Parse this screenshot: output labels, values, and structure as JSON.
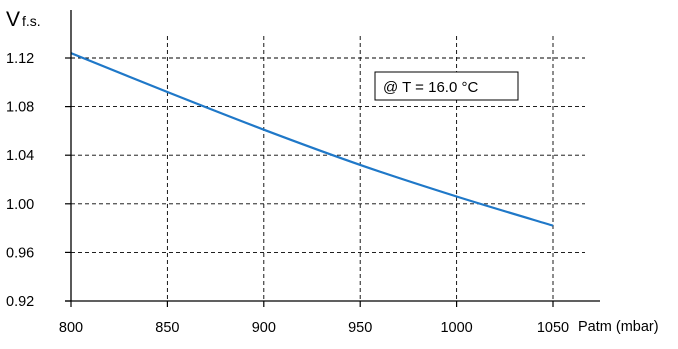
{
  "chart_data": {
    "type": "line",
    "title": "",
    "ylabel_main": "V",
    "ylabel_sub": "f.s.",
    "xlabel": "Patm (mbar)",
    "xlim": [
      800,
      1050
    ],
    "ylim": [
      0.92,
      1.12
    ],
    "x_ticks": [
      800,
      850,
      900,
      950,
      1000,
      1050
    ],
    "y_ticks": [
      "1.12",
      "1.08",
      "1.04",
      "1.00",
      "0.96",
      "0.92"
    ],
    "grid": true,
    "annotation": "@ T = 16.0 °C",
    "line_color": "#1f78c8",
    "series": [
      {
        "x": [
          800,
          850,
          900,
          950,
          1000,
          1050
        ],
        "y": [
          1.124,
          1.092,
          1.061,
          1.032,
          1.006,
          0.982
        ]
      }
    ]
  }
}
